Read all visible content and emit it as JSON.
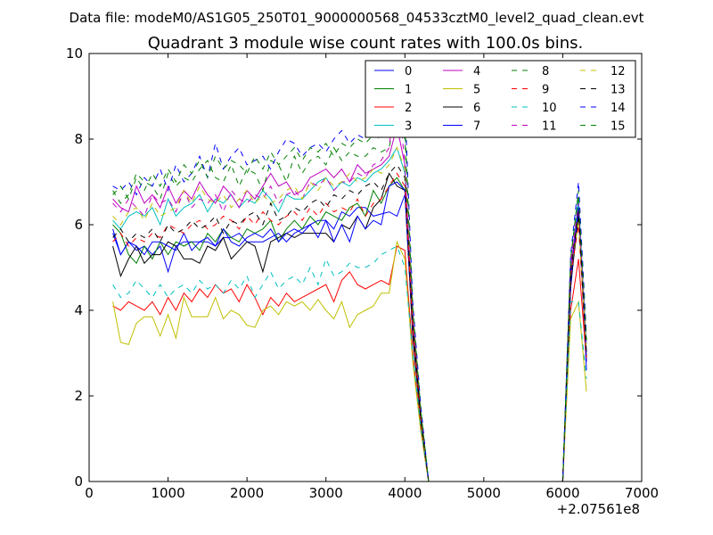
{
  "suptitle": "Data file: modeM0/AS1G05_250T01_9000000568_04533cztM0_level2_quad_clean.evt",
  "chart_data": {
    "type": "line",
    "title": "Quadrant 3 module wise count rates with 100.0s bins.",
    "xlabel": "",
    "ylabel": "",
    "x_offset_label": "+2.07561e8",
    "xlim": [
      0,
      7000
    ],
    "ylim": [
      0,
      10
    ],
    "xticks": [
      "0",
      "1000",
      "2000",
      "3000",
      "4000",
      "5000",
      "6000",
      "7000"
    ],
    "yticks": [
      "0",
      "2",
      "4",
      "6",
      "8",
      "10"
    ],
    "legend_position": "top-right",
    "x": [
      300,
      400,
      500,
      600,
      700,
      800,
      900,
      1000,
      1100,
      1200,
      1300,
      1400,
      1500,
      1600,
      1700,
      1800,
      1900,
      2000,
      2100,
      2200,
      2300,
      2400,
      2500,
      2600,
      2700,
      2800,
      2900,
      3000,
      3100,
      3200,
      3300,
      3400,
      3500,
      3600,
      3700,
      3800,
      3900,
      4000,
      4100,
      4200,
      4300,
      4400,
      4500,
      4600,
      4700,
      4800,
      4900,
      5000,
      5100,
      5200,
      5300,
      5400,
      5500,
      5600,
      5700,
      5800,
      5900,
      6000,
      6100,
      6200,
      6300
    ],
    "series": [
      {
        "name": "0",
        "color": "#0000ff",
        "dash": "solid",
        "values": [
          5.9,
          5.3,
          5.6,
          5.4,
          5.5,
          5.3,
          5.5,
          4.9,
          5.5,
          5.6,
          5.6,
          5.6,
          5.6,
          5.5,
          5.7,
          5.7,
          5.8,
          5.6,
          5.6,
          5.6,
          5.7,
          5.8,
          5.6,
          5.8,
          5.9,
          6.0,
          6.1,
          6.1,
          5.9,
          6.3,
          6.2,
          6.4,
          6.4,
          6.2,
          6.25,
          6.3,
          6.2,
          6.7,
          3.5,
          1.5,
          0,
          0,
          0,
          0,
          0,
          0,
          0,
          0,
          0,
          0,
          0,
          0,
          0,
          0,
          0,
          0,
          0,
          0,
          4.5,
          6.5,
          2.6
        ]
      },
      {
        "name": "1",
        "color": "#008000",
        "dash": "solid",
        "values": [
          6.0,
          5.8,
          5.3,
          5.1,
          5.5,
          5.2,
          5.6,
          5.3,
          5.6,
          5.5,
          5.6,
          5.4,
          5.8,
          5.6,
          5.9,
          5.7,
          5.6,
          5.9,
          5.8,
          5.9,
          6.1,
          5.6,
          5.9,
          6.1,
          5.9,
          6.2,
          6.0,
          6.3,
          6.2,
          6.1,
          6.4,
          6.5,
          6.2,
          6.8,
          6.5,
          6.9,
          7.1,
          6.8,
          3.5,
          1.5,
          0,
          0,
          0,
          0,
          0,
          0,
          0,
          0,
          0,
          0,
          0,
          0,
          0,
          0,
          0,
          0,
          0,
          0,
          4.8,
          6.3,
          3.0
        ]
      },
      {
        "name": "2",
        "color": "#ff0000",
        "dash": "solid",
        "values": [
          4.1,
          4.0,
          4.2,
          4.1,
          4.0,
          4.2,
          3.9,
          4.3,
          4.0,
          4.4,
          4.2,
          4.5,
          4.3,
          4.6,
          4.4,
          4.5,
          4.2,
          4.6,
          4.3,
          3.9,
          4.3,
          4.1,
          4.4,
          4.2,
          4.3,
          4.4,
          4.5,
          4.6,
          4.2,
          4.7,
          4.9,
          4.6,
          4.5,
          4.6,
          4.7,
          4.6,
          5.5,
          5.4,
          3.0,
          1.2,
          0,
          0,
          0,
          0,
          0,
          0,
          0,
          0,
          0,
          0,
          0,
          0,
          0,
          0,
          0,
          0,
          0,
          0,
          4.0,
          5.2,
          2.8
        ]
      },
      {
        "name": "3",
        "color": "#00bfbf",
        "dash": "solid",
        "values": [
          6.1,
          5.9,
          6.2,
          6.3,
          6.2,
          6.4,
          6.0,
          6.6,
          6.2,
          6.4,
          6.5,
          6.7,
          6.3,
          6.6,
          6.5,
          6.7,
          6.4,
          6.6,
          6.5,
          6.8,
          6.6,
          6.3,
          6.7,
          6.6,
          6.6,
          6.8,
          7.0,
          7.1,
          6.8,
          7.0,
          6.9,
          7.1,
          7.0,
          7.2,
          7.3,
          7.5,
          7.8,
          7.2,
          3.7,
          1.6,
          0,
          0,
          0,
          0,
          0,
          0,
          0,
          0,
          0,
          0,
          0,
          0,
          0,
          0,
          0,
          0,
          0,
          0,
          4.9,
          6.6,
          3.2
        ]
      },
      {
        "name": "4",
        "color": "#bf00bf",
        "dash": "solid",
        "values": [
          6.6,
          6.4,
          6.3,
          6.9,
          6.5,
          6.7,
          6.4,
          6.9,
          6.5,
          6.8,
          6.6,
          7.0,
          6.7,
          6.5,
          6.9,
          6.7,
          6.4,
          6.8,
          6.6,
          6.9,
          7.2,
          6.9,
          7.0,
          6.7,
          6.8,
          7.1,
          7.2,
          7.3,
          7.1,
          7.3,
          7.0,
          7.4,
          7.2,
          7.3,
          7.4,
          7.6,
          8.3,
          7.4,
          3.8,
          1.6,
          0,
          0,
          0,
          0,
          0,
          0,
          0,
          0,
          0,
          0,
          0,
          0,
          0,
          0,
          0,
          0,
          0,
          0,
          5.0,
          6.4,
          3.0
        ]
      },
      {
        "name": "5",
        "color": "#bfbf00",
        "dash": "solid",
        "values": [
          4.2,
          3.25,
          3.2,
          3.7,
          3.85,
          3.85,
          3.4,
          3.9,
          3.35,
          4.3,
          3.85,
          3.85,
          3.85,
          4.3,
          3.8,
          4.0,
          3.9,
          3.65,
          3.6,
          4.0,
          4.1,
          3.9,
          4.2,
          4.1,
          4.2,
          4.0,
          4.25,
          4.0,
          3.8,
          4.2,
          3.6,
          3.9,
          4.0,
          4.1,
          4.4,
          4.4,
          5.6,
          5.2,
          2.8,
          1.2,
          0,
          0,
          0,
          0,
          0,
          0,
          0,
          0,
          0,
          0,
          0,
          0,
          0,
          0,
          0,
          0,
          0,
          0,
          3.8,
          4.2,
          2.1
        ]
      },
      {
        "name": "6",
        "color": "#000000",
        "dash": "solid",
        "values": [
          5.5,
          4.8,
          5.2,
          5.5,
          5.1,
          5.3,
          5.3,
          5.6,
          5.5,
          5.2,
          5.2,
          5.1,
          5.5,
          5.4,
          5.7,
          5.2,
          5.4,
          5.6,
          5.5,
          4.9,
          5.6,
          5.7,
          5.8,
          5.7,
          5.8,
          5.8,
          5.8,
          5.8,
          5.6,
          6.0,
          5.9,
          6.2,
          5.9,
          6.4,
          6.6,
          7.2,
          6.9,
          6.8,
          3.4,
          1.4,
          0,
          0,
          0,
          0,
          0,
          0,
          0,
          0,
          0,
          0,
          0,
          0,
          0,
          0,
          0,
          0,
          0,
          0,
          4.6,
          6.2,
          2.9
        ]
      },
      {
        "name": "7",
        "color": "#0000ff",
        "dash": "solid",
        "values": [
          5.8,
          5.3,
          5.6,
          5.5,
          5.3,
          5.6,
          5.6,
          5.5,
          5.4,
          5.8,
          5.4,
          5.6,
          5.7,
          5.5,
          5.9,
          5.6,
          5.5,
          5.7,
          5.8,
          5.7,
          5.9,
          5.6,
          5.8,
          5.9,
          5.8,
          6.0,
          5.7,
          6.1,
          5.6,
          6.0,
          5.6,
          6.2,
          5.9,
          6.1,
          6.0,
          6.9,
          7.0,
          6.8,
          3.6,
          1.5,
          0,
          0,
          0,
          0,
          0,
          0,
          0,
          0,
          0,
          0,
          0,
          0,
          0,
          0,
          0,
          0,
          0,
          0,
          4.7,
          6.4,
          2.8
        ]
      },
      {
        "name": "8",
        "color": "#008000",
        "dash": "dashed",
        "values": [
          6.8,
          6.5,
          6.7,
          7.2,
          7.0,
          6.9,
          6.6,
          7.2,
          6.9,
          7.1,
          7.0,
          7.3,
          7.5,
          7.1,
          7.0,
          7.4,
          6.9,
          7.3,
          7.2,
          6.8,
          7.5,
          7.4,
          7.0,
          7.6,
          7.2,
          7.5,
          7.6,
          7.4,
          7.8,
          7.5,
          7.7,
          7.6,
          7.6,
          7.8,
          7.7,
          7.8,
          8.7,
          8.0,
          4.0,
          1.7,
          0,
          0,
          0,
          0,
          0,
          0,
          0,
          0,
          0,
          0,
          0,
          0,
          0,
          0,
          0,
          0,
          0,
          0,
          5.2,
          6.8,
          3.3
        ]
      },
      {
        "name": "9",
        "color": "#ff0000",
        "dash": "dashed",
        "values": [
          5.6,
          5.8,
          5.5,
          5.7,
          5.6,
          5.8,
          5.7,
          6.0,
          5.9,
          5.8,
          6.0,
          6.1,
          5.9,
          6.0,
          6.2,
          6.1,
          5.9,
          6.2,
          6.0,
          6.3,
          6.1,
          6.0,
          6.2,
          6.3,
          6.1,
          6.4,
          6.2,
          6.5,
          6.3,
          6.4,
          6.3,
          6.6,
          6.2,
          6.5,
          6.6,
          6.9,
          7.2,
          6.9,
          3.6,
          1.5,
          0,
          0,
          0,
          0,
          0,
          0,
          0,
          0,
          0,
          0,
          0,
          0,
          0,
          0,
          0,
          0,
          0,
          0,
          4.8,
          6.0,
          2.9
        ]
      },
      {
        "name": "10",
        "color": "#00bfbf",
        "dash": "dashed",
        "values": [
          4.6,
          4.3,
          4.4,
          4.7,
          4.5,
          4.3,
          4.6,
          4.3,
          4.5,
          4.6,
          4.4,
          4.7,
          4.5,
          4.6,
          4.4,
          4.7,
          4.5,
          4.8,
          4.3,
          4.6,
          4.9,
          4.5,
          4.7,
          4.8,
          4.6,
          5.0,
          4.6,
          5.2,
          4.8,
          4.9,
          5.1,
          5.0,
          5.0,
          5.1,
          5.3,
          5.4,
          5.5,
          5.0,
          3.0,
          1.3,
          0,
          0,
          0,
          0,
          0,
          0,
          0,
          0,
          0,
          0,
          0,
          0,
          0,
          0,
          0,
          0,
          0,
          0,
          4.2,
          4.2,
          2.4
        ]
      },
      {
        "name": "11",
        "color": "#bf00bf",
        "dash": "dashed",
        "values": [
          6.5,
          6.3,
          6.6,
          6.4,
          6.2,
          6.7,
          6.5,
          6.6,
          6.3,
          6.8,
          6.4,
          6.6,
          6.5,
          6.7,
          6.3,
          6.8,
          6.6,
          6.5,
          6.7,
          6.6,
          6.9,
          6.5,
          6.7,
          6.8,
          6.6,
          7.0,
          6.9,
          7.1,
          6.8,
          7.0,
          7.0,
          7.2,
          7.1,
          7.4,
          7.5,
          7.8,
          9.4,
          7.4,
          3.9,
          1.6,
          0,
          0,
          0,
          0,
          0,
          0,
          0,
          0,
          0,
          0,
          0,
          0,
          0,
          0,
          0,
          0,
          0,
          0,
          5.1,
          6.5,
          3.1
        ]
      },
      {
        "name": "12",
        "color": "#bfbf00",
        "dash": "dashed",
        "values": [
          6.2,
          6.0,
          6.3,
          6.4,
          6.1,
          6.5,
          6.2,
          6.3,
          6.4,
          6.8,
          6.5,
          6.9,
          6.6,
          6.5,
          6.7,
          6.4,
          6.6,
          6.8,
          6.5,
          6.7,
          6.5,
          6.6,
          6.8,
          6.9,
          6.6,
          7.0,
          6.8,
          7.1,
          6.9,
          7.0,
          7.2,
          7.0,
          7.1,
          7.3,
          7.2,
          7.4,
          7.8,
          7.3,
          3.8,
          1.6,
          0,
          0,
          0,
          0,
          0,
          0,
          0,
          0,
          0,
          0,
          0,
          0,
          0,
          0,
          0,
          0,
          0,
          0,
          4.9,
          6.1,
          3.0
        ]
      },
      {
        "name": "13",
        "color": "#000000",
        "dash": "dashed",
        "values": [
          5.7,
          5.9,
          5.6,
          5.8,
          5.7,
          5.9,
          5.6,
          6.0,
          5.8,
          5.9,
          6.1,
          5.9,
          6.0,
          6.2,
          5.8,
          6.1,
          6.0,
          6.2,
          6.3,
          6.0,
          6.5,
          6.1,
          6.2,
          6.4,
          6.3,
          6.5,
          6.6,
          6.4,
          6.7,
          6.6,
          6.8,
          6.7,
          6.9,
          7.0,
          6.8,
          7.2,
          7.4,
          7.1,
          3.7,
          1.5,
          0,
          0,
          0,
          0,
          0,
          0,
          0,
          0,
          0,
          0,
          0,
          0,
          0,
          0,
          0,
          0,
          0,
          0,
          4.9,
          6.3,
          3.0
        ]
      },
      {
        "name": "14",
        "color": "#0000ff",
        "dash": "dashed",
        "values": [
          6.9,
          6.8,
          7.0,
          6.7,
          7.1,
          6.9,
          7.3,
          6.8,
          7.4,
          7.0,
          7.2,
          7.6,
          7.1,
          7.9,
          7.3,
          7.6,
          7.8,
          7.4,
          7.5,
          7.6,
          7.3,
          7.7,
          8.0,
          7.9,
          7.6,
          7.8,
          7.9,
          7.7,
          8.0,
          8.2,
          7.9,
          8.1,
          8.0,
          8.2,
          8.3,
          8.5,
          9.5,
          8.8,
          4.2,
          1.8,
          0,
          0,
          0,
          0,
          0,
          0,
          0,
          0,
          0,
          0,
          0,
          0,
          0,
          0,
          0,
          0,
          0,
          0,
          5.3,
          7.0,
          3.4
        ]
      },
      {
        "name": "15",
        "color": "#008000",
        "dash": "dashed",
        "values": [
          6.7,
          6.9,
          6.6,
          7.1,
          6.8,
          7.2,
          6.9,
          7.3,
          7.0,
          7.4,
          7.2,
          7.5,
          7.1,
          7.6,
          7.3,
          7.5,
          7.4,
          7.2,
          7.6,
          7.3,
          7.7,
          7.4,
          7.6,
          7.8,
          7.5,
          7.8,
          7.7,
          7.9,
          7.6,
          7.9,
          7.8,
          8.0,
          7.9,
          8.1,
          8.0,
          8.2,
          8.6,
          8.3,
          4.1,
          1.7,
          0,
          0,
          0,
          0,
          0,
          0,
          0,
          0,
          0,
          0,
          0,
          0,
          0,
          0,
          0,
          0,
          0,
          0,
          5.2,
          6.7,
          3.3
        ]
      }
    ]
  }
}
